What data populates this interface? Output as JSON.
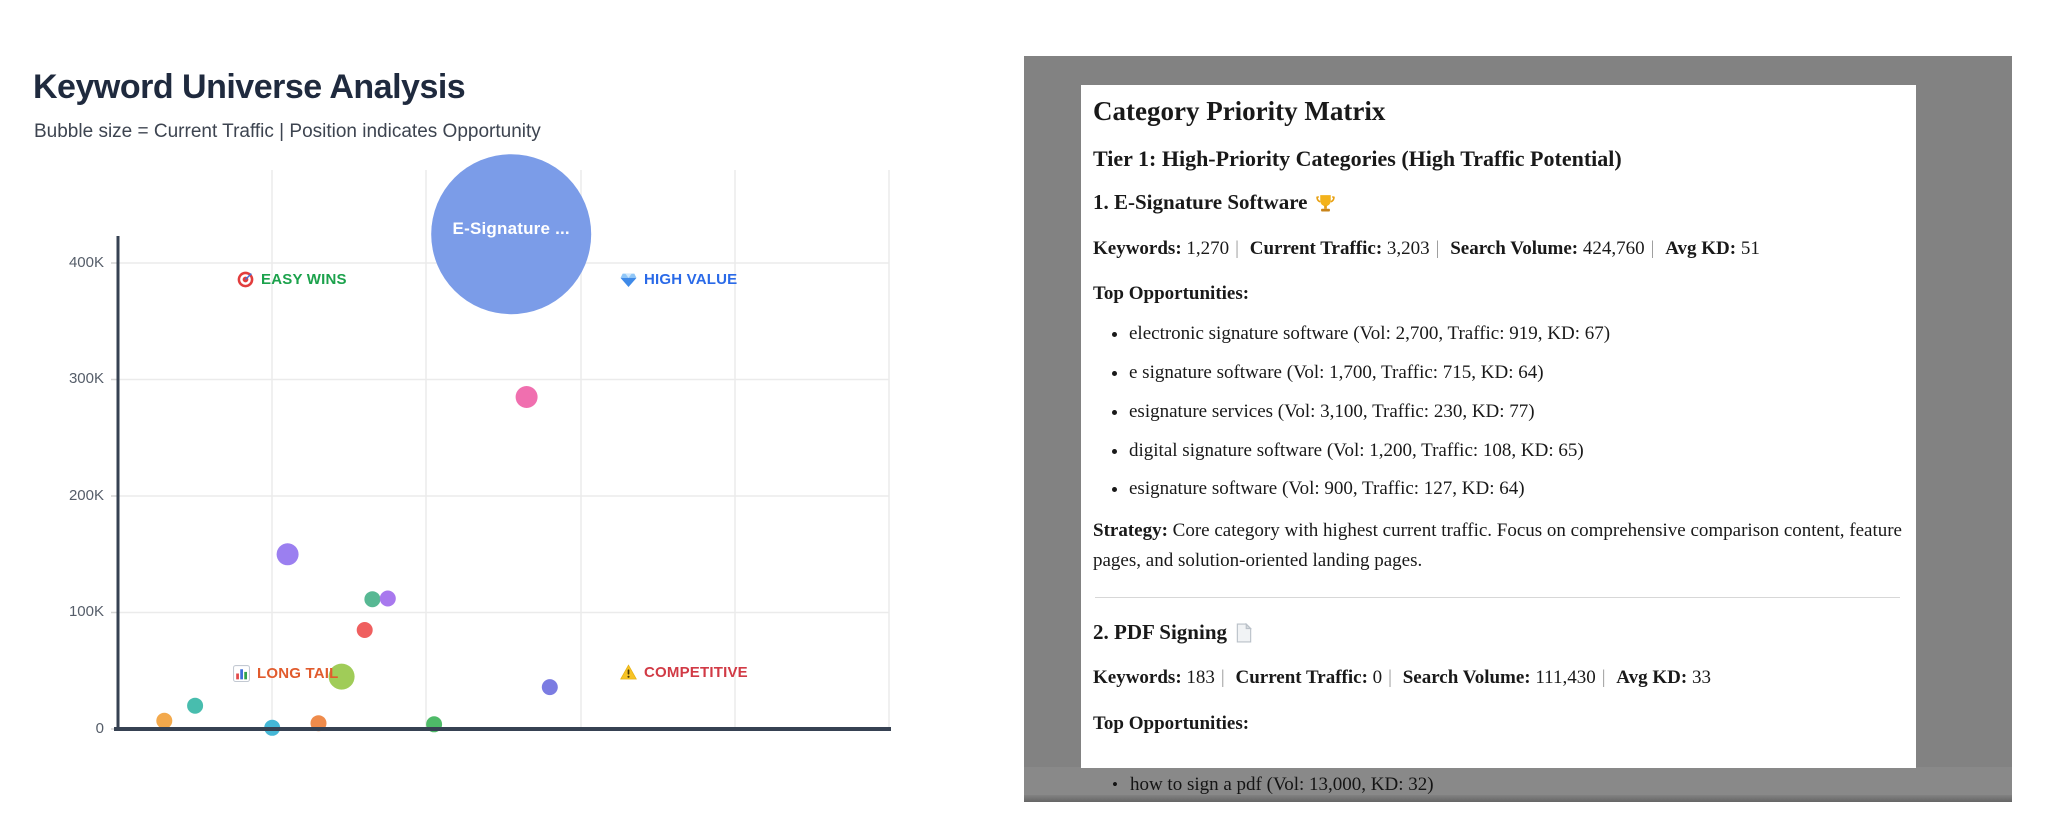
{
  "page": {
    "title": "Keyword Universe Analysis",
    "subtitle": "Bubble size = Current Traffic | Position indicates Opportunity"
  },
  "chart_data": {
    "type": "bubble",
    "title": "Keyword Universe Analysis",
    "x_axis": {
      "min": 0,
      "max": 100,
      "tick_labels_visible": false,
      "gridlines_at": [
        20,
        40,
        60,
        80,
        100
      ]
    },
    "y_axis": {
      "min": 0,
      "max": 440000,
      "tick_labels": [
        "400K",
        "300K",
        "200K",
        "100K",
        "0"
      ]
    },
    "quadrants": [
      {
        "label": "EASY WINS",
        "icon": "target-icon",
        "color": "#1ca24c",
        "position": "top-left"
      },
      {
        "label": "HIGH VALUE",
        "icon": "gem-icon",
        "color": "#2a6ae8",
        "position": "top-right"
      },
      {
        "label": "LONG TAIL",
        "icon": "bar-chart-icon",
        "color": "#e15b2d",
        "position": "bottom-left"
      },
      {
        "label": "COMPETITIVE",
        "icon": "warning-icon",
        "color": "#d13a45",
        "position": "bottom-right"
      }
    ],
    "bubbles": [
      {
        "label": "E-Signature ...",
        "kd": 51,
        "volume": 424760,
        "r": 80,
        "color": "#7b9ce8"
      },
      {
        "kd": 53,
        "volume": 285000,
        "r": 11,
        "color": "#f06faf"
      },
      {
        "kd": 22,
        "volume": 150000,
        "r": 11,
        "color": "#9b7ff0"
      },
      {
        "kd": 33,
        "volume": 111430,
        "r": 8,
        "color": "#57b893"
      },
      {
        "kd": 35,
        "volume": 112000,
        "r": 8,
        "color": "#a878ee"
      },
      {
        "kd": 32,
        "volume": 85000,
        "r": 8,
        "color": "#ef5f5f"
      },
      {
        "kd": 29,
        "volume": 45000,
        "r": 13,
        "color": "#a0cc58"
      },
      {
        "kd": 56,
        "volume": 36000,
        "r": 8,
        "color": "#7b7ce2"
      },
      {
        "kd": 10,
        "volume": 20000,
        "r": 8,
        "color": "#48bdae"
      },
      {
        "kd": 6,
        "volume": 7000,
        "r": 8,
        "color": "#f3a94c"
      },
      {
        "kd": 20,
        "volume": 1000,
        "r": 8,
        "color": "#45b7d6"
      },
      {
        "kd": 26,
        "volume": 5000,
        "r": 8,
        "color": "#ef8b4b"
      },
      {
        "kd": 41,
        "volume": 4000,
        "r": 8,
        "color": "#4eba68"
      }
    ]
  },
  "doc": {
    "title": "Category Priority Matrix",
    "tier1_heading": "Tier 1: High-Priority Categories (High Traffic Potential)",
    "meta_separator": "|",
    "bullet_glyph": "•",
    "sections": [
      {
        "heading": "1. E-Signature Software",
        "icon": "trophy-icon",
        "meta": [
          {
            "label": "Keywords:",
            "value": "1,270"
          },
          {
            "label": "Current Traffic:",
            "value": "3,203"
          },
          {
            "label": "Search Volume:",
            "value": "424,760"
          },
          {
            "label": "Avg KD:",
            "value": "51"
          }
        ],
        "top_opportunities_heading": "Top Opportunities:",
        "opportunities": [
          "electronic signature software (Vol: 2,700, Traffic: 919, KD: 67)",
          "e signature software (Vol: 1,700, Traffic: 715, KD: 64)",
          "esignature services (Vol: 3,100, Traffic: 230, KD: 77)",
          "digital signature software (Vol: 1,200, Traffic: 108, KD: 65)",
          "esignature software (Vol: 900, Traffic: 127, KD: 64)"
        ],
        "strategy_label": "Strategy:",
        "strategy_text": "Core category with highest current traffic. Focus on comprehensive comparison content, feature pages, and solution-oriented landing pages."
      },
      {
        "heading": "2. PDF Signing",
        "icon": "page-icon",
        "meta": [
          {
            "label": "Keywords:",
            "value": "183"
          },
          {
            "label": "Current Traffic:",
            "value": "0"
          },
          {
            "label": "Search Volume:",
            "value": "111,430"
          },
          {
            "label": "Avg KD:",
            "value": "33"
          }
        ],
        "top_opportunities_heading": "Top Opportunities:",
        "opportunities": [
          "how to sign a pdf (Vol: 13,000, KD: 32)"
        ]
      }
    ]
  }
}
